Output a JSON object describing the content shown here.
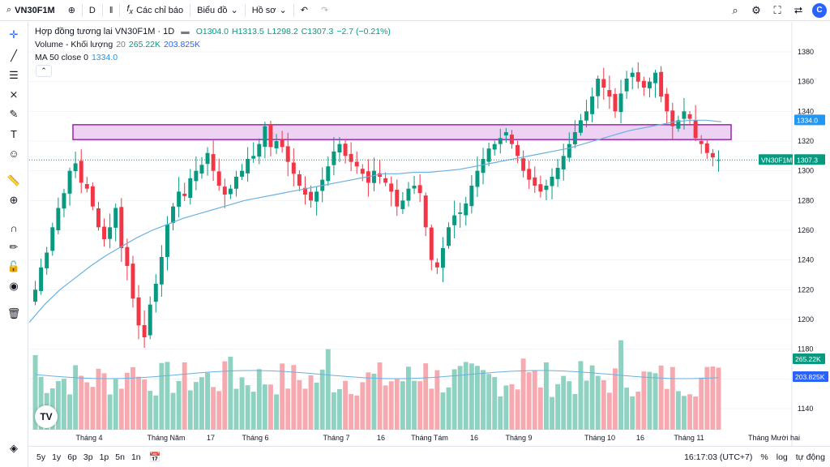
{
  "toolbar": {
    "symbol": "VN30F1M",
    "interval": "D",
    "indicators_label": "Các chỉ báo",
    "chart_label": "Biểu đồ",
    "profile_label": "Hồ sơ"
  },
  "legend": {
    "title": "Hợp đồng tương lai VN30F1M · 1D",
    "open": "O1304.0",
    "high": "H1313.5",
    "low": "L1298.2",
    "close": "C1307.3",
    "change": "−2.7 (−0.21%)",
    "volume_label": "Volume - Khối lượng",
    "volume_length": "20",
    "volume_value": "265.22K",
    "volume_ma": "203.825K",
    "ma_label": "MA 50 close 0",
    "ma_value": "1334.0"
  },
  "price_labels": {
    "ma": "1334.0",
    "symbol": "VN30F1M",
    "last": "1307.3",
    "volume": "265.22K",
    "volume_ma": "203.825K"
  },
  "bottombar": {
    "ranges": [
      "5y",
      "1y",
      "6p",
      "3p",
      "1p",
      "5n",
      "1n"
    ],
    "time": "16:17:03 (UTC+7)",
    "percent": "%",
    "log": "log",
    "auto": "tự động"
  },
  "colors": {
    "up": "#089981",
    "down": "#f23645",
    "up_volume": "#8fd2c2",
    "down_volume": "#f7a9b0",
    "ma": "#6ab0e0",
    "zone_fill": "#e9c7f0",
    "zone_stroke": "#9c27b0"
  },
  "chart_data": {
    "type": "candlestick",
    "symbol": "VN30F1M",
    "timeframe": "1D",
    "y_axis_ticks": [
      1140,
      1160,
      1180,
      1200,
      1220,
      1240,
      1260,
      1280,
      1300,
      1320,
      1340,
      1360,
      1380
    ],
    "x_axis_labels": [
      "Tháng 4",
      "Tháng Năm",
      "17",
      "Tháng 6",
      "Tháng 7",
      "16",
      "Tháng Tám",
      "16",
      "Tháng 9",
      "Tháng 10",
      "16",
      "Tháng 11",
      "Tháng Mười hai"
    ],
    "close": [
      1220,
      1235,
      1245,
      1262,
      1275,
      1285,
      1300,
      1305,
      1292,
      1288,
      1276,
      1262,
      1254,
      1262,
      1275,
      1248,
      1236,
      1214,
      1196,
      1188,
      1210,
      1224,
      1242,
      1264,
      1276,
      1286,
      1283,
      1295,
      1300,
      1304,
      1312,
      1300,
      1290,
      1284,
      1288,
      1296,
      1300,
      1308,
      1310,
      1318,
      1330,
      1316,
      1320,
      1316,
      1306,
      1298,
      1290,
      1284,
      1280,
      1286,
      1294,
      1303,
      1313,
      1318,
      1310,
      1306,
      1303,
      1298,
      1292,
      1300,
      1296,
      1292,
      1286,
      1276,
      1280,
      1288,
      1290,
      1285,
      1262,
      1240,
      1235,
      1248,
      1262,
      1270,
      1272,
      1278,
      1290,
      1300,
      1308,
      1315,
      1318,
      1322,
      1326,
      1318,
      1310,
      1300,
      1294,
      1290,
      1286,
      1290,
      1296,
      1302,
      1310,
      1318,
      1326,
      1334,
      1340,
      1350,
      1362,
      1356,
      1350,
      1340,
      1352,
      1362,
      1366,
      1360,
      1356,
      1360,
      1366,
      1350,
      1340,
      1330,
      1334,
      1340,
      1335,
      1322,
      1318,
      1312,
      1309,
      1307.3
    ],
    "ma50": [
      1198,
      1210,
      1220,
      1228,
      1236,
      1243,
      1249,
      1255,
      1260,
      1264,
      1268,
      1271,
      1274,
      1277,
      1280,
      1282,
      1284,
      1286,
      1288,
      1290,
      1292,
      1294,
      1296,
      1298,
      1298,
      1299,
      1299,
      1300,
      1301,
      1303,
      1305,
      1307,
      1309,
      1311,
      1313,
      1315,
      1318,
      1321,
      1324,
      1327,
      1329,
      1331,
      1333,
      1334,
      1334,
      1333
    ],
    "volume_ma": [
      203.825
    ],
    "zone": {
      "low": 1321,
      "high": 1331
    },
    "last_price": 1307.3,
    "ma_value": 1334.0
  }
}
